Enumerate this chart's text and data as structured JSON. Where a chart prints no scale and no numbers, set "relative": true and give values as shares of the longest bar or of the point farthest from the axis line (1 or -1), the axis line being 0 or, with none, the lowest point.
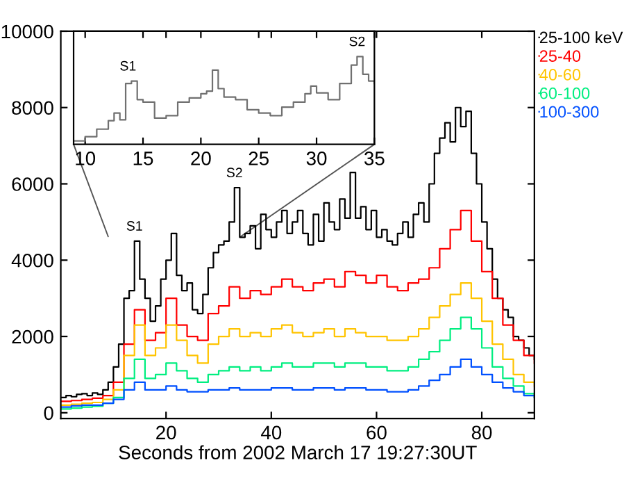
{
  "chart_data": [
    {
      "type": "step",
      "relative": true,
      "xlim": [
        9,
        35
      ],
      "xticks": [
        10,
        15,
        20,
        25,
        30,
        35
      ],
      "tick_labels": "x",
      "grid": false,
      "annotations": [
        {
          "text": "S1",
          "x": 13.7,
          "y": 0.71
        },
        {
          "text": "S2",
          "x": 33.5,
          "y": 1
        }
      ],
      "series": [
        {
          "color": "#707070",
          "x": [
            9,
            10,
            11,
            12,
            12.5,
            13,
            13.5,
            14,
            14.5,
            15,
            16,
            17,
            18,
            19,
            20,
            20.5,
            21,
            21.5,
            22,
            23,
            24,
            25,
            26,
            27,
            28,
            29,
            29.5,
            30,
            31,
            32,
            33,
            33.5,
            34,
            34.5,
            35
          ],
          "values": [
            0,
            0.05,
            0.14,
            0.24,
            0.33,
            0.25,
            0.68,
            0.71,
            0.49,
            0.46,
            0.27,
            0.3,
            0.46,
            0.51,
            0.56,
            0.59,
            0.84,
            0.62,
            0.52,
            0.49,
            0.37,
            0.33,
            0.3,
            0.4,
            0.46,
            0.56,
            0.65,
            0.57,
            0.49,
            0.68,
            0.9,
            1,
            0.79,
            0.71,
            0.68
          ]
        }
      ]
    },
    {
      "type": "step",
      "xlabel": "Seconds from 2002 March 17 19:27:30UT",
      "xlim": [
        0,
        90
      ],
      "xticks": [
        20,
        40,
        60,
        80
      ],
      "ylim": [
        -150,
        10000
      ],
      "yticks": [
        0,
        2000,
        4000,
        6000,
        8000,
        10000
      ],
      "grid": false,
      "legend": "top right",
      "line_style": "solid",
      "marker": "none",
      "annotations": [
        {
          "text": "S1",
          "x": 14,
          "y": 4500
        },
        {
          "text": "S2",
          "x": 33,
          "y": 5900
        }
      ],
      "series": [
        {
          "name": "25-100 keV",
          "color": "#000000",
          "x": [
            0,
            1,
            2,
            3,
            4,
            5,
            6,
            7,
            8,
            9,
            10,
            11,
            12,
            13,
            14,
            15,
            16,
            17,
            18,
            19,
            20,
            21,
            22,
            23,
            24,
            25,
            26,
            27,
            28,
            29,
            30,
            31,
            32,
            33,
            34,
            35,
            36,
            37,
            38,
            39,
            40,
            41,
            42,
            43,
            44,
            45,
            46,
            47,
            48,
            49,
            50,
            51,
            52,
            53,
            54,
            55,
            56,
            57,
            58,
            59,
            60,
            61,
            62,
            63,
            64,
            65,
            66,
            67,
            68,
            69,
            70,
            71,
            72,
            73,
            74,
            75,
            76,
            77,
            78,
            79,
            80,
            81,
            82,
            83,
            84,
            85,
            86,
            87,
            88,
            89,
            90
          ],
          "values": [
            400,
            450,
            420,
            480,
            500,
            450,
            520,
            480,
            600,
            800,
            1200,
            1800,
            3000,
            3200,
            4500,
            3500,
            3000,
            2400,
            2800,
            3500,
            4000,
            4700,
            3600,
            3200,
            3400,
            2700,
            2600,
            3100,
            3800,
            4200,
            4400,
            4500,
            5000,
            5900,
            4600,
            4700,
            4900,
            4300,
            5200,
            4800,
            4600,
            5000,
            5300,
            4700,
            5000,
            5300,
            4700,
            4400,
            5200,
            4500,
            5500,
            5000,
            4800,
            5600,
            5100,
            6300,
            5100,
            5400,
            4800,
            5300,
            4600,
            4800,
            4500,
            4400,
            4700,
            5000,
            4600,
            5200,
            5500,
            5000,
            6000,
            6800,
            7200,
            7600,
            7100,
            8000,
            7500,
            7900,
            6800,
            6000,
            5000,
            4300,
            3500,
            3000,
            2700,
            2500,
            2000,
            1900,
            1700,
            1500,
            1400
          ]
        },
        {
          "name": "25-40",
          "color": "#ff0000",
          "x": [
            0,
            2,
            4,
            6,
            8,
            10,
            12,
            14,
            16,
            18,
            20,
            22,
            24,
            26,
            28,
            30,
            32,
            34,
            36,
            38,
            40,
            42,
            44,
            46,
            48,
            50,
            52,
            54,
            56,
            58,
            60,
            62,
            64,
            66,
            68,
            70,
            72,
            74,
            76,
            78,
            80,
            82,
            84,
            86,
            88,
            90
          ],
          "values": [
            300,
            320,
            350,
            380,
            450,
            800,
            1800,
            2700,
            1900,
            2100,
            3000,
            2300,
            2000,
            1900,
            2600,
            2800,
            3300,
            3000,
            3200,
            3100,
            3300,
            3500,
            3300,
            3200,
            3400,
            3500,
            3300,
            3700,
            3600,
            3400,
            3600,
            3300,
            3200,
            3400,
            3500,
            3800,
            4300,
            4800,
            5300,
            4500,
            3700,
            3000,
            2300,
            1900,
            1500,
            1300
          ]
        },
        {
          "name": "40-60",
          "color": "#ffc400",
          "x": [
            0,
            2,
            4,
            6,
            8,
            10,
            12,
            14,
            16,
            18,
            20,
            22,
            24,
            26,
            28,
            30,
            32,
            34,
            36,
            38,
            40,
            42,
            44,
            46,
            48,
            50,
            52,
            54,
            56,
            58,
            60,
            62,
            64,
            66,
            68,
            70,
            72,
            74,
            76,
            78,
            80,
            82,
            84,
            86,
            88,
            90
          ],
          "values": [
            200,
            220,
            250,
            270,
            350,
            600,
            1500,
            2300,
            1500,
            1700,
            2300,
            1900,
            1500,
            1300,
            1800,
            2000,
            2200,
            2000,
            2100,
            2000,
            2200,
            2300,
            2100,
            2000,
            2100,
            2200,
            2000,
            2200,
            2100,
            2000,
            2000,
            1900,
            1900,
            2000,
            2200,
            2500,
            2800,
            3100,
            3400,
            3000,
            2400,
            1800,
            1400,
            1000,
            800,
            700
          ]
        },
        {
          "name": "60-100",
          "color": "#00ee80",
          "x": [
            0,
            2,
            4,
            6,
            8,
            10,
            12,
            14,
            16,
            18,
            20,
            22,
            24,
            26,
            28,
            30,
            32,
            34,
            36,
            38,
            40,
            42,
            44,
            46,
            48,
            50,
            52,
            54,
            56,
            58,
            60,
            62,
            64,
            66,
            68,
            70,
            72,
            74,
            76,
            78,
            80,
            82,
            84,
            86,
            88,
            90
          ],
          "values": [
            100,
            120,
            150,
            170,
            250,
            400,
            900,
            1400,
            900,
            1000,
            1300,
            1100,
            900,
            800,
            1000,
            1100,
            1200,
            1100,
            1200,
            1100,
            1200,
            1300,
            1200,
            1200,
            1300,
            1300,
            1200,
            1300,
            1300,
            1200,
            1200,
            1100,
            1100,
            1200,
            1400,
            1600,
            1900,
            2200,
            2500,
            2200,
            1700,
            1200,
            900,
            700,
            500,
            400
          ]
        },
        {
          "name": "100-300",
          "color": "#0050ff",
          "x": [
            0,
            2,
            4,
            6,
            8,
            10,
            12,
            14,
            16,
            18,
            20,
            22,
            24,
            26,
            28,
            30,
            32,
            34,
            36,
            38,
            40,
            42,
            44,
            46,
            48,
            50,
            52,
            54,
            56,
            58,
            60,
            62,
            64,
            66,
            68,
            70,
            72,
            74,
            76,
            78,
            80,
            82,
            84,
            86,
            88,
            90
          ],
          "values": [
            150,
            180,
            200,
            200,
            250,
            350,
            600,
            800,
            600,
            600,
            700,
            600,
            550,
            550,
            600,
            600,
            650,
            600,
            600,
            600,
            650,
            650,
            600,
            600,
            650,
            650,
            600,
            650,
            650,
            600,
            600,
            550,
            550,
            600,
            700,
            850,
            1000,
            1200,
            1400,
            1200,
            1000,
            800,
            650,
            550,
            450,
            400
          ]
        }
      ]
    }
  ]
}
